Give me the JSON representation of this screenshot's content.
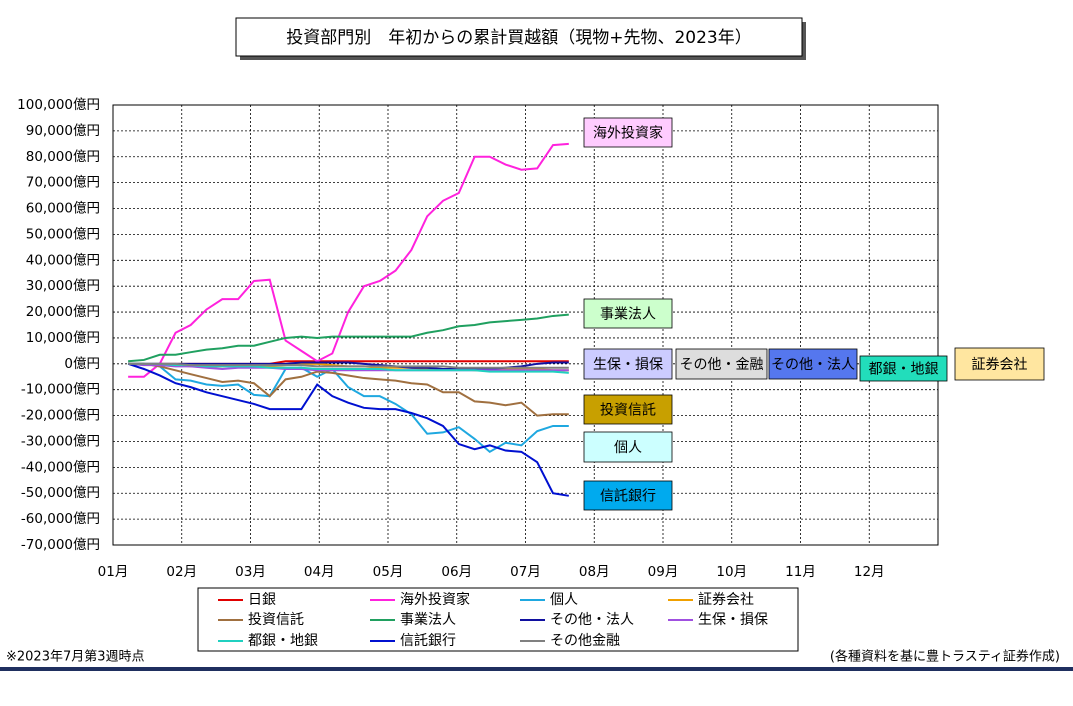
{
  "chart_data": {
    "type": "line",
    "title": "投資部門別　年初からの累計買越額（現物+先物、2023年）",
    "x": [
      0.22,
      0.45,
      0.68,
      0.91,
      1.13,
      1.36,
      1.59,
      1.82,
      2.05,
      2.28,
      2.51,
      2.74,
      2.97,
      3.19,
      3.42,
      3.65,
      3.88,
      4.11,
      4.34,
      4.57,
      4.8,
      5.03,
      5.26,
      5.48,
      5.71,
      5.94,
      6.17,
      6.4,
      6.63
    ],
    "xlim": [
      0,
      12
    ],
    "xticks": [
      {
        "value": 0,
        "label": "01月"
      },
      {
        "value": 1,
        "label": "02月"
      },
      {
        "value": 2,
        "label": "03月"
      },
      {
        "value": 3,
        "label": "04月"
      },
      {
        "value": 4,
        "label": "05月"
      },
      {
        "value": 5,
        "label": "06月"
      },
      {
        "value": 6,
        "label": "07月"
      },
      {
        "value": 7,
        "label": "08月"
      },
      {
        "value": 8,
        "label": "09月"
      },
      {
        "value": 9,
        "label": "10月"
      },
      {
        "value": 10,
        "label": "11月"
      },
      {
        "value": 11,
        "label": "12月"
      }
    ],
    "ylim": [
      -70000,
      100000
    ],
    "yticks": [
      {
        "value": 100000,
        "label": "100,000億円"
      },
      {
        "value": 90000,
        "label": "90,000億円"
      },
      {
        "value": 80000,
        "label": "80,000億円"
      },
      {
        "value": 70000,
        "label": "70,000億円"
      },
      {
        "value": 60000,
        "label": "60,000億円"
      },
      {
        "value": 50000,
        "label": "50,000億円"
      },
      {
        "value": 40000,
        "label": "40,000億円"
      },
      {
        "value": 30000,
        "label": "30,000億円"
      },
      {
        "value": 20000,
        "label": "20,000億円"
      },
      {
        "value": 10000,
        "label": "10,000億円"
      },
      {
        "value": 0,
        "label": "0億円"
      },
      {
        "value": -10000,
        "label": "-10,000億円"
      },
      {
        "value": -20000,
        "label": "-20,000億円"
      },
      {
        "value": -30000,
        "label": "-30,000億円"
      },
      {
        "value": -40000,
        "label": "-40,000億円"
      },
      {
        "value": -50000,
        "label": "-50,000億円"
      },
      {
        "value": -60000,
        "label": "-60,000億円"
      },
      {
        "value": -70000,
        "label": "-70,000億円"
      }
    ],
    "negative_tick_color": "#e00000",
    "grid": true,
    "series": [
      {
        "name": "日銀",
        "color": "#e00000",
        "values": [
          0,
          0,
          0,
          0,
          0,
          0,
          0,
          0,
          0,
          0,
          1000,
          1000,
          1000,
          1000,
          1000,
          1000,
          1000,
          1000,
          1000,
          1000,
          1000,
          1000,
          1000,
          1000,
          1000,
          1000,
          1000,
          1000,
          1000
        ]
      },
      {
        "name": "海外投資家",
        "color": "#ff22dd",
        "values": [
          -5000,
          -5000,
          0,
          12000,
          15000,
          21000,
          25000,
          25000,
          32000,
          32500,
          9000,
          5000,
          1000,
          4000,
          20000,
          30000,
          32000,
          36000,
          44000,
          57000,
          63000,
          66000,
          80000,
          80000,
          77000,
          75000,
          75500,
          84500,
          85000
        ]
      },
      {
        "name": "個人",
        "color": "#1fa8e0",
        "values": [
          0,
          0,
          -1000,
          -6000,
          -6500,
          -8000,
          -8500,
          -8000,
          -12000,
          -12500,
          -2000,
          -1500,
          -5000,
          -2000,
          -9000,
          -12500,
          -12500,
          -15500,
          -19500,
          -27000,
          -26500,
          -24500,
          -29000,
          -34000,
          -30500,
          -31500,
          -26000,
          -24000,
          -24000
        ]
      },
      {
        "name": "証券会社",
        "color": "#f0a000",
        "values": [
          0,
          0,
          -500,
          -500,
          -1000,
          -1000,
          -1000,
          -500,
          -500,
          -1000,
          -500,
          0,
          0,
          -500,
          -1000,
          -1000,
          -1500,
          -1500,
          -1500,
          -2000,
          -2000,
          -2000,
          -2500,
          -2500,
          -2000,
          -2000,
          -2000,
          -2500,
          -2500
        ]
      },
      {
        "name": "投資信託",
        "color": "#a07040",
        "values": [
          0,
          0,
          -1000,
          -2500,
          -4000,
          -5500,
          -7000,
          -6500,
          -7500,
          -12500,
          -6000,
          -5000,
          -3000,
          -3500,
          -4500,
          -5500,
          -6000,
          -6500,
          -7500,
          -8000,
          -11000,
          -11000,
          -14500,
          -15000,
          -16000,
          -15000,
          -20000,
          -19500,
          -19500
        ]
      },
      {
        "name": "事業法人",
        "color": "#20a060",
        "values": [
          1000,
          1500,
          3500,
          3500,
          4500,
          5500,
          6000,
          7000,
          7000,
          8500,
          10000,
          10500,
          10000,
          10500,
          10500,
          10500,
          10500,
          10500,
          10500,
          12000,
          13000,
          14500,
          15000,
          16000,
          16500,
          17000,
          17500,
          18500,
          19000
        ]
      },
      {
        "name": "その他・法人",
        "color": "#1010a0",
        "values": [
          0,
          0,
          0,
          0,
          0,
          0,
          0,
          0,
          0,
          0,
          0,
          500,
          500,
          500,
          500,
          0,
          -500,
          -1000,
          -1500,
          -1500,
          -2000,
          -2000,
          -2000,
          -2000,
          -1500,
          -1000,
          0,
          500,
          500
        ]
      },
      {
        "name": "生保・損保",
        "color": "#a050e0",
        "values": [
          0,
          -500,
          -500,
          -1000,
          -1000,
          -1500,
          -2000,
          -1500,
          -1500,
          -1500,
          -2000,
          -2000,
          -2500,
          -2500,
          -2500,
          -2500,
          -2500,
          -2500,
          -2500,
          -2500,
          -2500,
          -2500,
          -2500,
          -2500,
          -2500,
          -2500,
          -2500,
          -2500,
          -2500
        ]
      },
      {
        "name": "都銀・地銀",
        "color": "#20d0c0",
        "values": [
          0,
          0,
          0,
          -500,
          -500,
          -1000,
          -1000,
          -1000,
          -1000,
          -1500,
          -1500,
          -1500,
          -2000,
          -2000,
          -2000,
          -2000,
          -2000,
          -2500,
          -2500,
          -2500,
          -2500,
          -2500,
          -2500,
          -3000,
          -3000,
          -3000,
          -3000,
          -3000,
          -3500
        ]
      },
      {
        "name": "信託銀行",
        "color": "#0010d0",
        "values": [
          0,
          -2000,
          -4500,
          -7500,
          -9000,
          -11000,
          -12500,
          -14000,
          -15500,
          -17500,
          -17500,
          -17500,
          -8000,
          -12500,
          -15000,
          -17000,
          -17500,
          -17500,
          -19000,
          -21000,
          -24000,
          -31000,
          -33000,
          -31500,
          -33500,
          -34000,
          -38000,
          -50000,
          -51000
        ]
      },
      {
        "name": "その他金融",
        "color": "#808080",
        "values": [
          0,
          0,
          0,
          0,
          -500,
          -500,
          -500,
          -500,
          -500,
          -500,
          -500,
          -500,
          -1000,
          -1000,
          -1000,
          -1000,
          -1000,
          -1000,
          -1000,
          -1000,
          -1000,
          -1500,
          -1500,
          -1500,
          -1500,
          -1500,
          -1500,
          -1500,
          -1500
        ]
      }
    ],
    "annotations": [
      {
        "text": "海外投資家",
        "color": "#ffccff"
      },
      {
        "text": "事業法人",
        "color": "#ccffcc"
      },
      {
        "text": "生保・損保",
        "color": "#ccccff"
      },
      {
        "text": "その他・金融",
        "color": "#dddddd"
      },
      {
        "text": "その他・法人",
        "color": "#5577ee"
      },
      {
        "text": "都銀・地銀",
        "color": "#22ddbb"
      },
      {
        "text": "証券会社",
        "color": "#ffe6a0"
      },
      {
        "text": "投資信託",
        "color": "#c8a000"
      },
      {
        "text": "個人",
        "color": "#ccffff"
      },
      {
        "text": "信託銀行",
        "color": "#00aaee"
      }
    ],
    "note": "※2023年7月第3週時点",
    "source": "(各種資料を基に豊トラスティ証券作成)"
  }
}
